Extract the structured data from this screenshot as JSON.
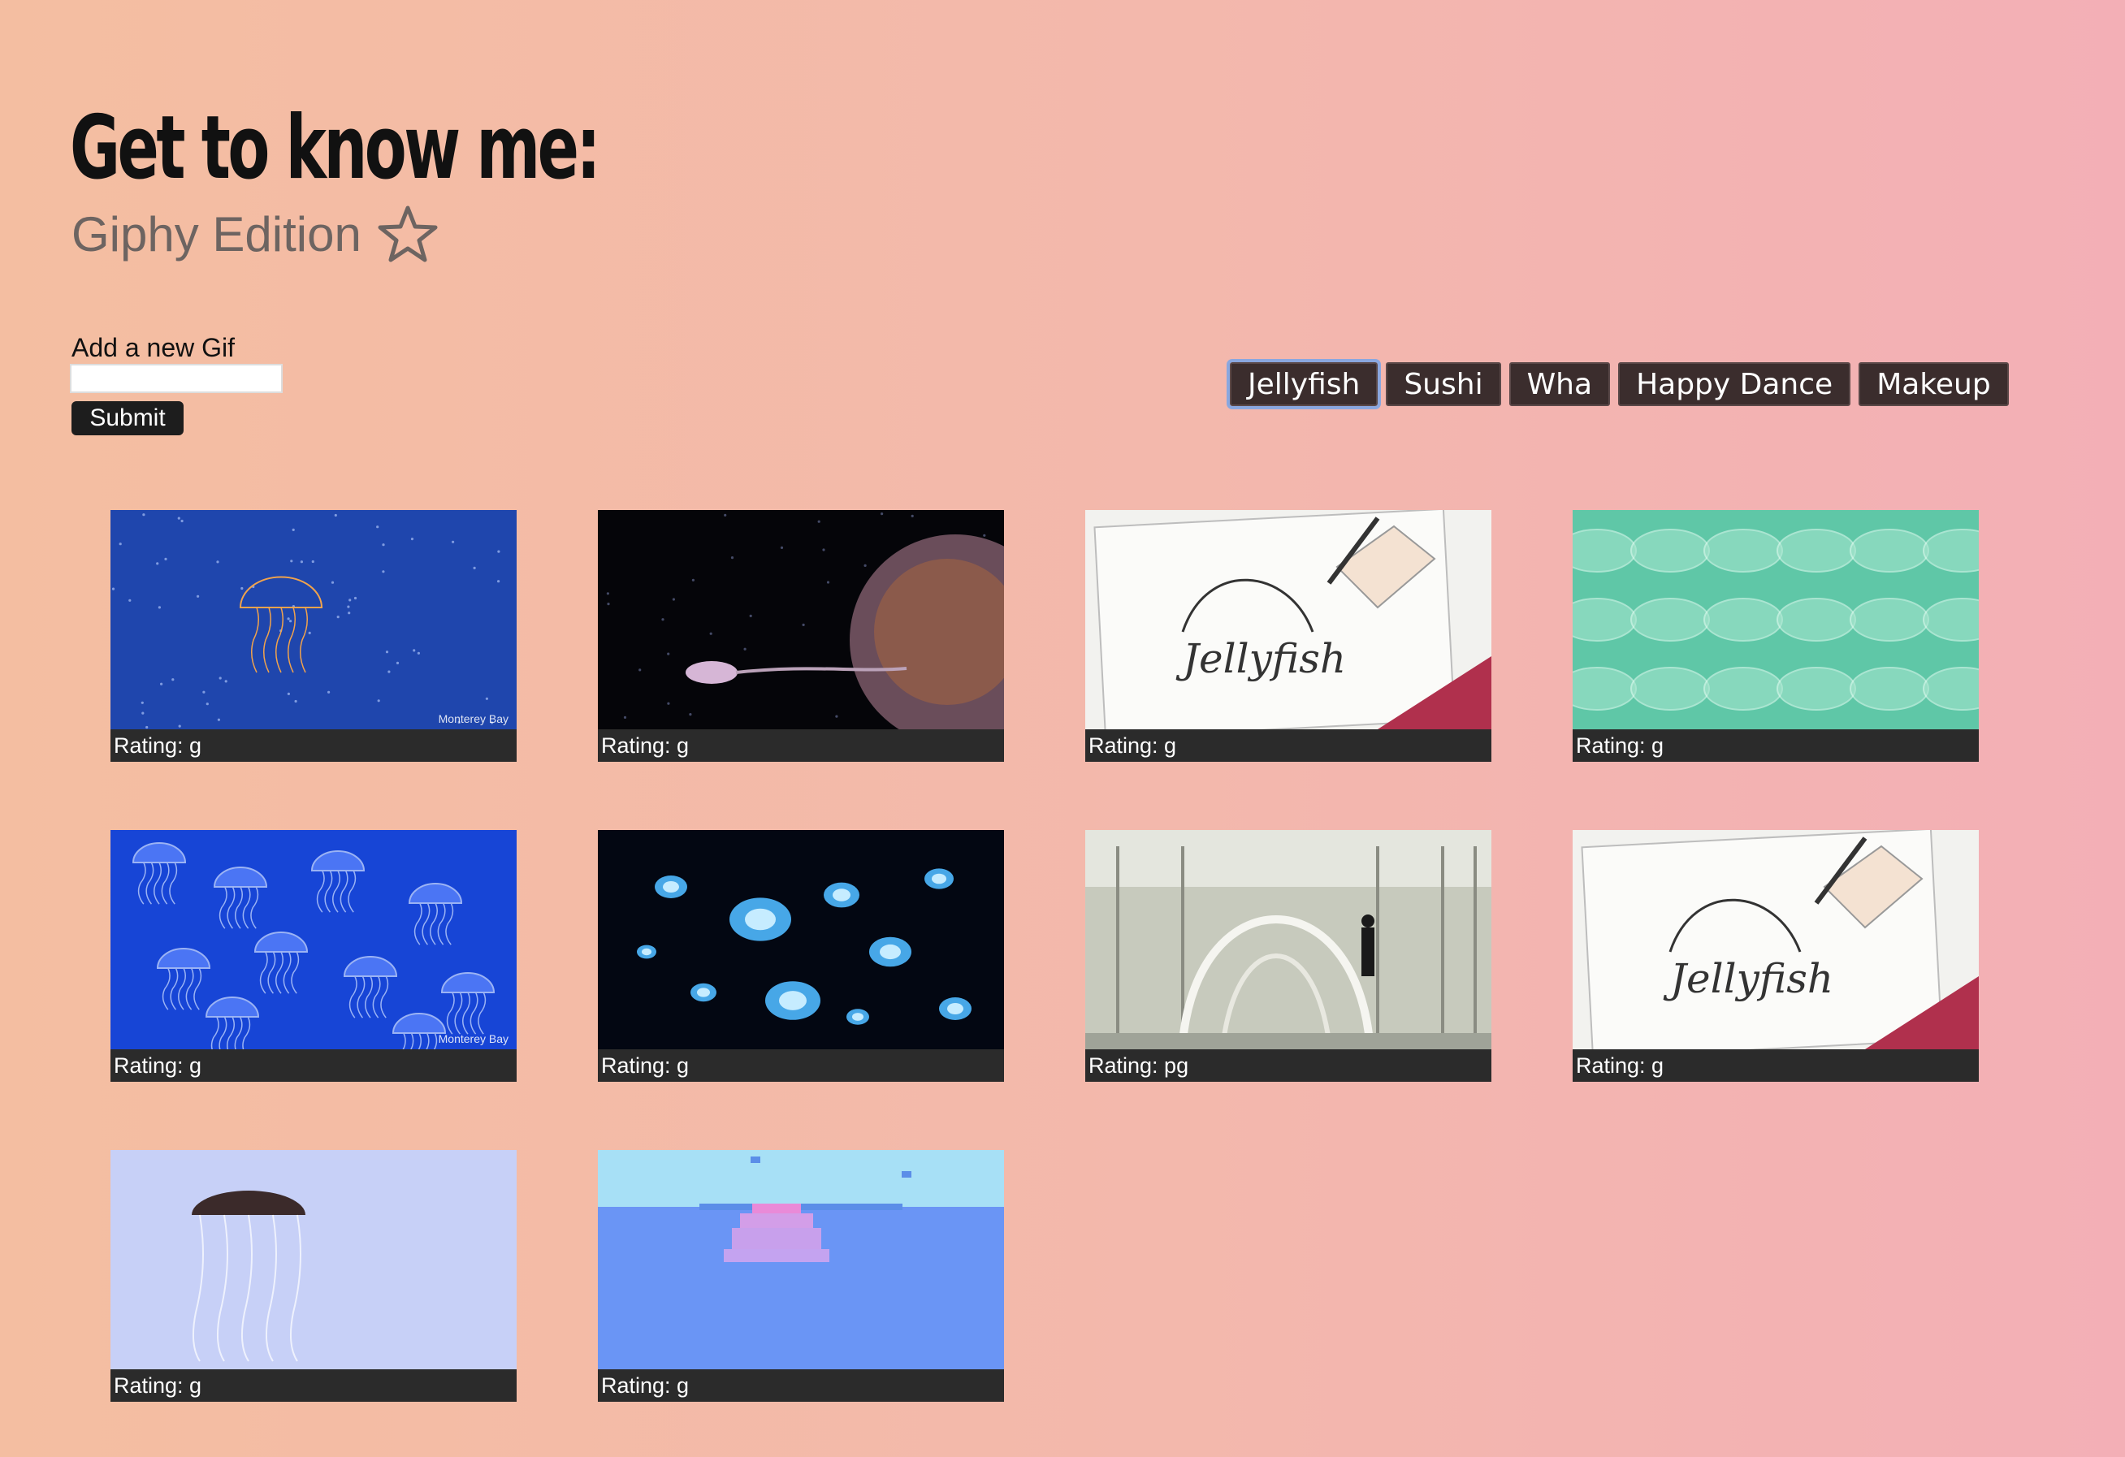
{
  "header": {
    "title": "Get to know me:",
    "subtitle": "Giphy Edition"
  },
  "form": {
    "label": "Add a new Gif",
    "input_value": "",
    "submit_label": "Submit"
  },
  "topics": {
    "active": "Jellyfish",
    "items": [
      "Jellyfish",
      "Sushi",
      "Wha",
      "Happy Dance",
      "Makeup"
    ]
  },
  "gifs": [
    {
      "rating": "Rating: g",
      "scene": "jellyfish-deep-blue",
      "watermark": "Monterey Bay"
    },
    {
      "rating": "Rating: g",
      "scene": "jellyfish-dark-orange",
      "watermark": ""
    },
    {
      "rating": "Rating: g",
      "scene": "anime-drawing-jellyfish",
      "watermark": ""
    },
    {
      "rating": "Rating: g",
      "scene": "jellyfish-teal-swarm",
      "watermark": ""
    },
    {
      "rating": "Rating: g",
      "scene": "jellyfish-blue-swarm",
      "watermark": "Monterey Bay"
    },
    {
      "rating": "Rating: g",
      "scene": "jellyfish-glowing-dark",
      "watermark": ""
    },
    {
      "rating": "Rating: pg",
      "scene": "jellyfish-sculpture-hall",
      "watermark": ""
    },
    {
      "rating": "Rating: g",
      "scene": "anime-drawing-jellyfish",
      "watermark": ""
    },
    {
      "rating": "Rating: g",
      "scene": "jellyfish-pale-blue",
      "watermark": ""
    },
    {
      "rating": "Rating: g",
      "scene": "pixel-art-jellyfish",
      "watermark": ""
    }
  ],
  "colors": {
    "button_bg": "#3b2d2d",
    "active_outline": "#8aa7df",
    "caption_bg": "#2b2b2b"
  }
}
